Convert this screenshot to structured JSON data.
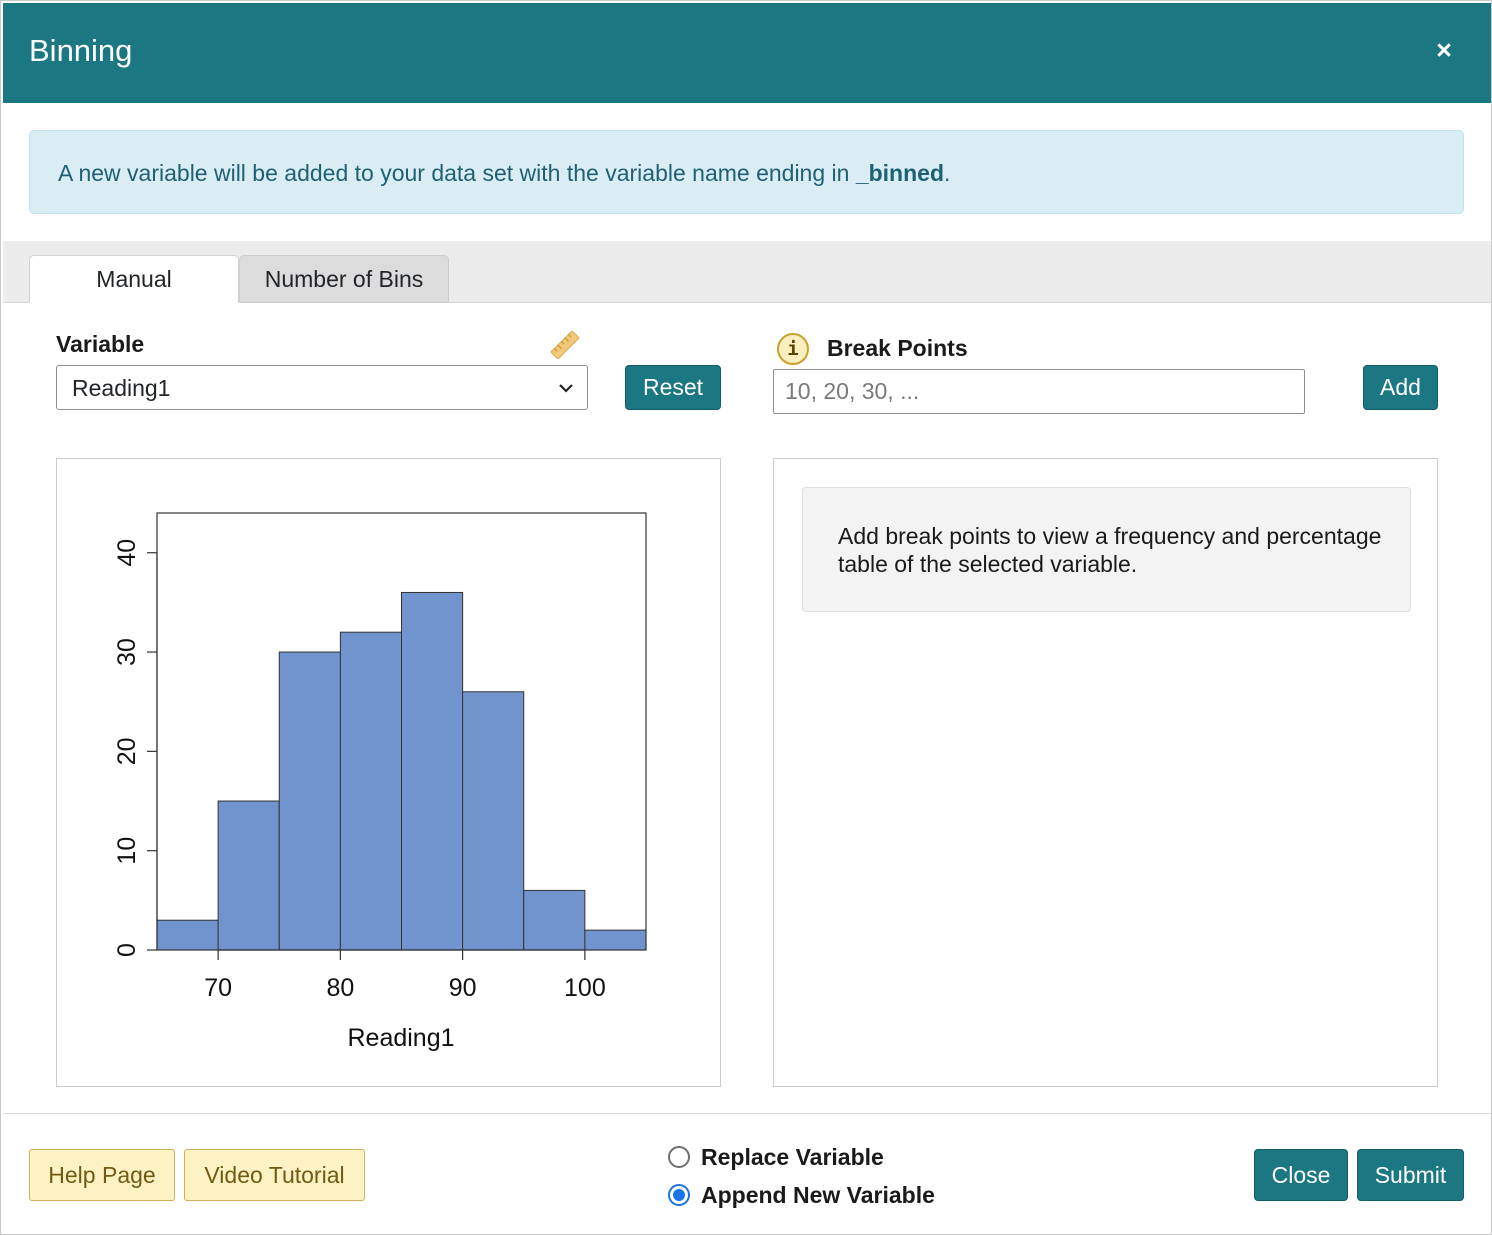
{
  "header": {
    "title": "Binning",
    "close_glyph": "×"
  },
  "alert": {
    "text_before": "A new variable will be added to your data set with the variable name ending in ",
    "suffix": "_binned",
    "text_after": "."
  },
  "tabs": [
    {
      "label": "Manual",
      "active": true
    },
    {
      "label": "Number of Bins",
      "active": false
    }
  ],
  "variable": {
    "label": "Variable",
    "selected": "Reading1",
    "icon": "ruler-icon"
  },
  "reset_label": "Reset",
  "break_points": {
    "label": "Break Points",
    "info_glyph": "i",
    "placeholder": "10, 20, 30, ...",
    "value": "",
    "add_label": "Add"
  },
  "hint": {
    "text": "Add break points to view a frequency and percentage table of the selected variable."
  },
  "footer": {
    "help_label": "Help Page",
    "video_label": "Video Tutorial",
    "radio_options": [
      {
        "label": "Replace Variable",
        "checked": false
      },
      {
        "label": "Append New Variable",
        "checked": true
      }
    ],
    "close_label": "Close",
    "submit_label": "Submit"
  },
  "colors": {
    "header": "#1b7781",
    "bar_fill": "#7294ce",
    "accent_blue": "#1a73e8"
  },
  "chart_data": {
    "type": "bar",
    "subtype": "histogram",
    "title": "",
    "xlabel": "Reading1",
    "ylabel": "",
    "bin_edges": [
      65,
      70,
      75,
      80,
      85,
      90,
      95,
      100,
      105
    ],
    "values": [
      3,
      15,
      30,
      32,
      36,
      26,
      6,
      2
    ],
    "xlim": [
      65,
      105
    ],
    "ylim": [
      0,
      44
    ],
    "x_ticks": [
      70,
      80,
      90,
      100
    ],
    "y_ticks": [
      0,
      10,
      20,
      30,
      40
    ],
    "grid": false,
    "legend": "none"
  }
}
